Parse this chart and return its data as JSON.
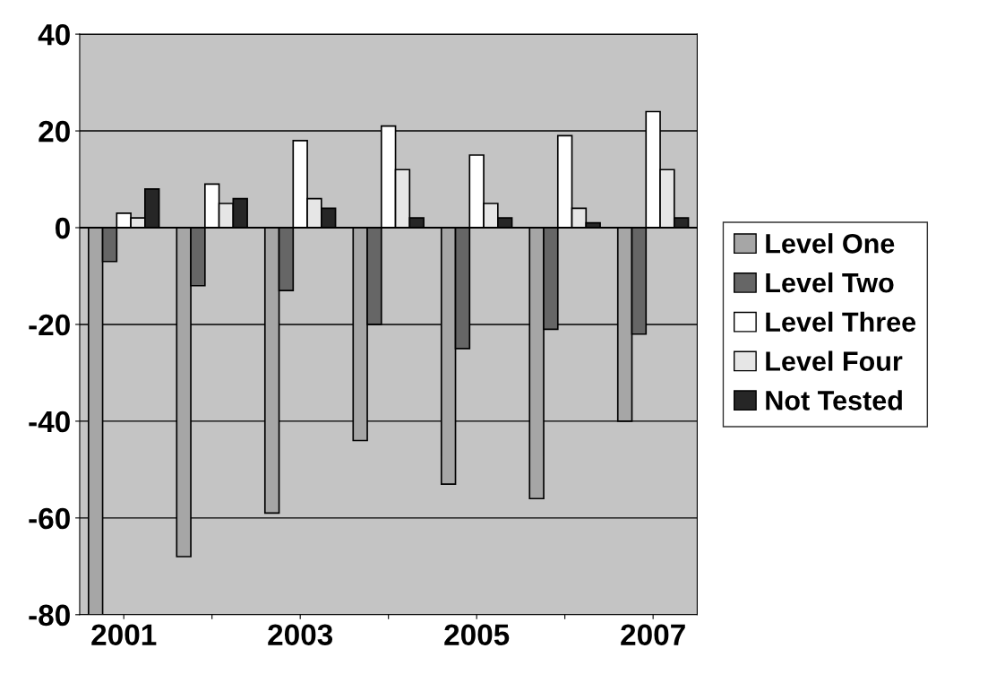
{
  "chart_data": {
    "type": "bar",
    "categories": [
      "2001",
      null,
      "2003",
      null,
      "2005",
      null,
      "2007"
    ],
    "series": [
      {
        "name": "Level One",
        "color": "#a6a6a6",
        "values": [
          -80,
          -68,
          -59,
          -44,
          -53,
          -56,
          -40
        ]
      },
      {
        "name": "Level Two",
        "color": "#666666",
        "values": [
          -7,
          -12,
          -13,
          -20,
          -25,
          -21,
          -22
        ]
      },
      {
        "name": "Level Three",
        "color": "#ffffff",
        "values": [
          3,
          9,
          18,
          21,
          15,
          19,
          24
        ]
      },
      {
        "name": "Level Four",
        "color": "#e6e6e6",
        "values": [
          2,
          5,
          6,
          12,
          5,
          4,
          12
        ]
      },
      {
        "name": "Not Tested",
        "color": "#262626",
        "values": [
          8,
          6,
          4,
          2,
          2,
          1,
          2
        ]
      }
    ],
    "ylim": [
      -80,
      40
    ],
    "yticks": [
      -80,
      -60,
      -40,
      -20,
      0,
      20,
      40
    ],
    "grid": "y",
    "legend": "right"
  }
}
